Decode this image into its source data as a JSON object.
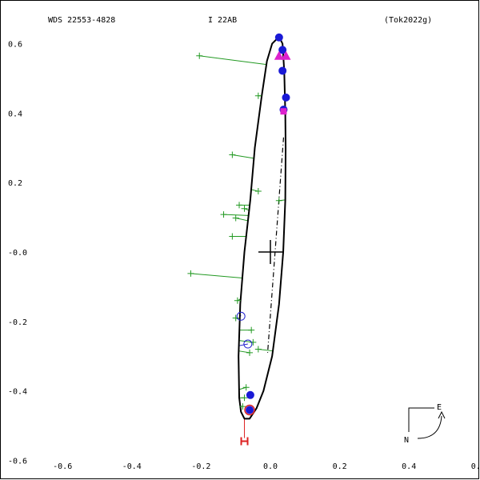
{
  "header": {
    "wds": "WDS 22553-4828",
    "disc": "I    22AB",
    "ref": "(Tok2022g)"
  },
  "compass": {
    "e_label": "E",
    "n_label": "N"
  },
  "chart_data": {
    "type": "scatter",
    "title": "",
    "xlabel": "",
    "ylabel": "",
    "xlim": [
      -0.7,
      0.7
    ],
    "ylim": [
      -0.6,
      0.65
    ],
    "y_axis_inverted": true,
    "x_ticks": [
      "-0.6",
      "-0.4",
      "-0.2",
      "0.0",
      "0.2",
      "0.4",
      "0.6"
    ],
    "x_tick_values": [
      -0.6,
      -0.4,
      -0.2,
      0.0,
      0.2,
      0.4,
      0.6
    ],
    "y_ticks": [
      "0.6",
      "0.4",
      "0.2",
      "-0.0",
      "-0.2",
      "-0.4",
      "-0.6"
    ],
    "y_tick_values": [
      0.6,
      0.4,
      0.2,
      0.0,
      -0.2,
      -0.4,
      -0.6
    ],
    "primary": [
      0,
      0
    ],
    "orbit": [
      [
        0.025,
        0.62
      ],
      [
        0.035,
        0.6
      ],
      [
        0.04,
        0.52
      ],
      [
        0.043,
        0.4
      ],
      [
        0.044,
        0.3
      ],
      [
        0.043,
        0.15
      ],
      [
        0.037,
        0.0
      ],
      [
        0.025,
        -0.15
      ],
      [
        0.005,
        -0.3
      ],
      [
        -0.02,
        -0.4
      ],
      [
        -0.04,
        -0.45
      ],
      [
        -0.06,
        -0.48
      ],
      [
        -0.075,
        -0.48
      ],
      [
        -0.085,
        -0.46
      ],
      [
        -0.09,
        -0.42
      ],
      [
        -0.092,
        -0.3
      ],
      [
        -0.087,
        -0.15
      ],
      [
        -0.075,
        0.0
      ],
      [
        -0.058,
        0.15
      ],
      [
        -0.045,
        0.3
      ],
      [
        -0.025,
        0.45
      ],
      [
        -0.01,
        0.55
      ],
      [
        0.005,
        0.6
      ],
      [
        0.025,
        0.62
      ]
    ],
    "line_of_nodes": [
      [
        0.038,
        0.33
      ],
      [
        -0.008,
        -0.29
      ]
    ],
    "visual_obs": [
      [
        -0.205,
        0.565
      ],
      [
        -0.035,
        0.45
      ],
      [
        -0.11,
        0.28
      ],
      [
        -0.035,
        0.175
      ],
      [
        -0.09,
        0.135
      ],
      [
        -0.075,
        0.125
      ],
      [
        -0.135,
        0.108
      ],
      [
        -0.1,
        0.098
      ],
      [
        -0.11,
        0.045
      ],
      [
        0.025,
        0.148
      ],
      [
        -0.23,
        -0.062
      ],
      [
        -0.095,
        -0.14
      ],
      [
        -0.1,
        -0.19
      ],
      [
        -0.055,
        -0.225
      ],
      [
        -0.05,
        -0.26
      ],
      [
        -0.035,
        -0.28
      ],
      [
        -0.06,
        -0.29
      ],
      [
        -0.07,
        -0.39
      ],
      [
        -0.075,
        -0.42
      ],
      [
        -0.08,
        -0.445
      ]
    ],
    "speckle_obs": [
      [
        0.025,
        0.618
      ],
      [
        0.035,
        0.582
      ],
      [
        0.035,
        0.522
      ],
      [
        0.045,
        0.445
      ],
      [
        0.038,
        0.41
      ],
      [
        -0.058,
        -0.412
      ],
      [
        -0.06,
        -0.455
      ]
    ],
    "circle_obs": [
      [
        -0.085,
        -0.185
      ],
      [
        -0.065,
        -0.265
      ]
    ],
    "triangle_obs": [
      [
        0.025,
        0.565
      ],
      [
        0.045,
        0.565
      ]
    ],
    "square_obs": [
      [
        0.038,
        0.405
      ]
    ],
    "hipparcos_obs": [
      [
        -0.075,
        -0.545
      ]
    ],
    "red_mark": [
      [
        -0.06,
        -0.455
      ]
    ]
  }
}
